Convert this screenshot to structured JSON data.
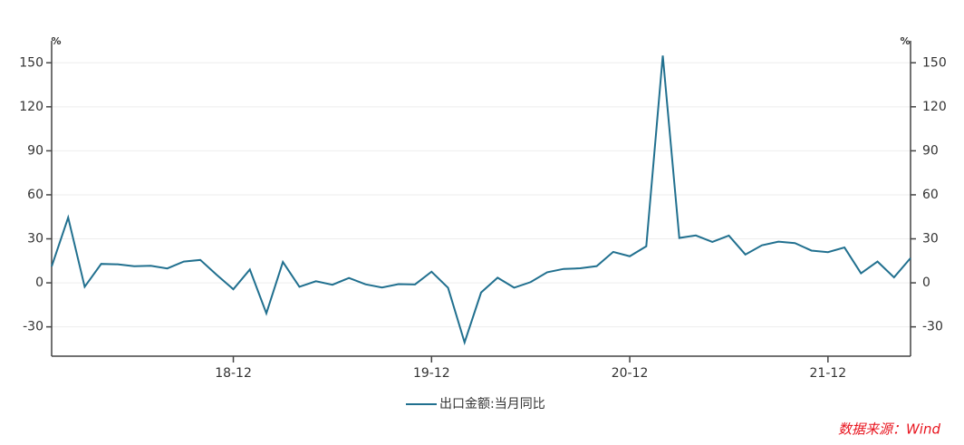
{
  "chart_data": {
    "type": "line",
    "unit": "%",
    "categories": [
      null,
      null,
      null,
      null,
      null,
      null,
      null,
      null,
      null,
      null,
      null,
      "18-12",
      null,
      null,
      null,
      null,
      null,
      null,
      null,
      null,
      null,
      null,
      null,
      "19-12",
      null,
      null,
      null,
      null,
      null,
      null,
      null,
      null,
      null,
      null,
      null,
      "20-12",
      null,
      null,
      null,
      null,
      null,
      null,
      null,
      null,
      null,
      null,
      null,
      "21-12",
      null,
      null,
      null,
      null,
      null
    ],
    "series": [
      {
        "name": "出口金额:当月同比",
        "color": "#21708f",
        "values": [
          11.1,
          44.5,
          -2.7,
          12.9,
          12.6,
          11.3,
          11.6,
          9.8,
          14.5,
          15.6,
          5.4,
          -4.4,
          9.1,
          -20.8,
          14.2,
          -2.7,
          1.1,
          -1.3,
          3.3,
          -1.0,
          -3.2,
          -0.9,
          -1.1,
          7.6,
          -3.4,
          -40.6,
          -6.6,
          3.5,
          -3.3,
          0.5,
          7.2,
          9.5,
          9.9,
          11.4,
          21.1,
          18.1,
          24.9,
          154.9,
          30.6,
          32.3,
          27.9,
          32.2,
          19.3,
          25.6,
          28.1,
          27.1,
          22.0,
          20.9,
          24.1,
          6.5,
          14.5,
          3.7,
          16.9
        ]
      }
    ],
    "ylim": [
      -50,
      165
    ],
    "yticks": [
      -30,
      0,
      30,
      60,
      90,
      120,
      150
    ],
    "y2lim": [
      -50,
      165
    ],
    "y2ticks": [
      -30,
      0,
      30,
      60,
      90,
      120,
      150
    ],
    "grid": true,
    "source": "数据来源：Wind"
  }
}
